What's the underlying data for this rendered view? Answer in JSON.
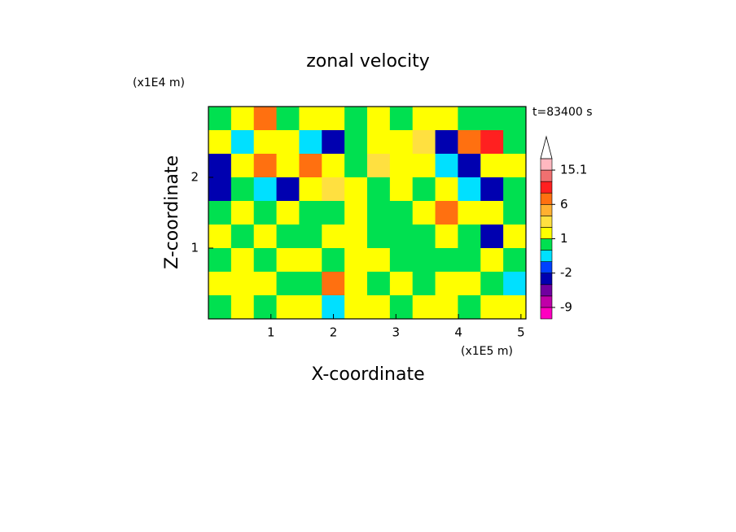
{
  "chart_data": {
    "type": "contour",
    "title": "zonal velocity",
    "x_label": "X-coordinate",
    "y_label": "Z-coordinate",
    "x_unit": "(x1E5 m)",
    "y_unit": "(x1E4 m)",
    "time_label": "t=83400 s",
    "xlim": [
      0,
      5.08
    ],
    "ylim": [
      0,
      3.0
    ],
    "xticks": [
      1,
      2,
      3,
      4,
      5
    ],
    "yticks": [
      1,
      2
    ],
    "levels": [
      -12,
      -9,
      -6,
      -3,
      -2,
      -1,
      0,
      1,
      2,
      4,
      6,
      9,
      12,
      15.1
    ],
    "colors": [
      "#ff00c0",
      "#c000a8",
      "#7000a0",
      "#0000b0",
      "#0040ff",
      "#00e0ff",
      "#00e050",
      "#ffff00",
      "#ffe040",
      "#ffb030",
      "#ff7010",
      "#ff2020",
      "#f07070",
      "#ffb8c0",
      "#ffffff"
    ],
    "colorbar_ticks": [
      -9,
      -2,
      1,
      6,
      15.1
    ],
    "z": [
      [
        -0.5,
        0.5,
        4,
        -0.5,
        0.5,
        0.5,
        -0.5,
        0.5,
        -0.5,
        0.5,
        0.5,
        -0.5,
        -0.5,
        -0.5
      ],
      [
        0.5,
        -1.5,
        0.5,
        0.5,
        -1.5,
        -4,
        -0.5,
        0.5,
        0.5,
        1.5,
        -4,
        4,
        7,
        -0.5
      ],
      [
        -4,
        0.5,
        4,
        0.5,
        4,
        0.5,
        -0.5,
        1.5,
        0.5,
        0.5,
        -1.5,
        -4,
        0.5,
        0.5
      ],
      [
        -4,
        -0.5,
        -1.5,
        -4,
        0.5,
        1.5,
        0.5,
        -0.5,
        0.5,
        -0.5,
        0.5,
        -1.5,
        -4,
        -0.5
      ],
      [
        -0.5,
        0.5,
        -0.5,
        0.5,
        -0.5,
        -0.5,
        0.5,
        -0.5,
        -0.5,
        0.5,
        4,
        0.5,
        0.5,
        -0.5
      ],
      [
        0.5,
        -0.5,
        0.5,
        -0.5,
        -0.5,
        0.5,
        0.5,
        -0.5,
        -0.5,
        -0.5,
        0.5,
        -0.5,
        -4,
        0.5
      ],
      [
        -0.5,
        0.5,
        -0.5,
        0.5,
        0.5,
        -0.5,
        0.5,
        0.5,
        -0.5,
        -0.5,
        -0.5,
        -0.5,
        0.5,
        -0.5
      ],
      [
        0.5,
        0.5,
        0.5,
        -0.5,
        -0.5,
        4,
        0.5,
        -0.5,
        0.5,
        -0.5,
        0.5,
        0.5,
        -0.5,
        -1.5
      ],
      [
        -0.5,
        0.5,
        -0.5,
        0.5,
        0.5,
        -1.5,
        0.5,
        0.5,
        -0.5,
        0.5,
        0.5,
        -0.5,
        0.5,
        0.5
      ]
    ]
  }
}
